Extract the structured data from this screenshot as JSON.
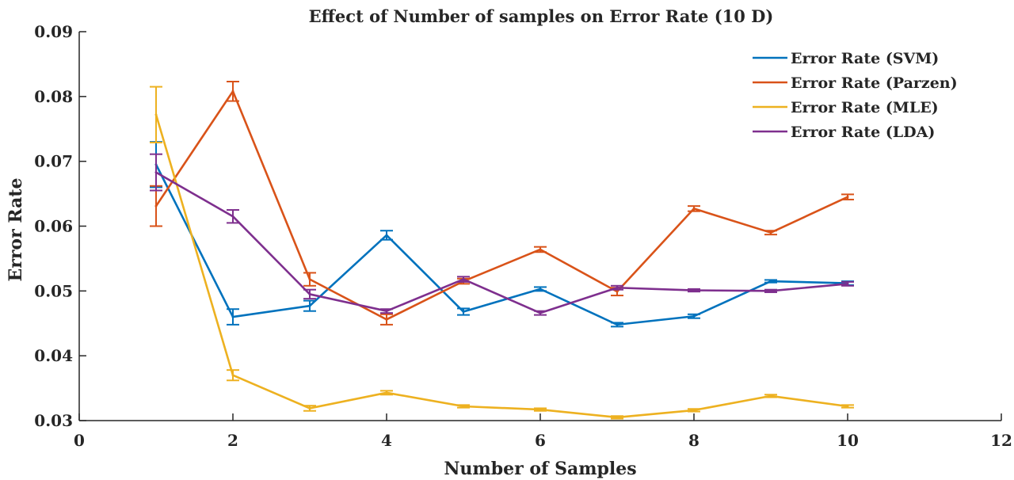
{
  "chart_data": {
    "type": "line",
    "title": "Effect of Number of samples on Error Rate (10 D)",
    "xlabel": "Number of Samples",
    "ylabel": "Error Rate",
    "xlim": [
      0,
      12
    ],
    "ylim": [
      0.03,
      0.09
    ],
    "xticks": [
      "0",
      "2",
      "4",
      "6",
      "8",
      "10",
      "12"
    ],
    "yticks": [
      "0.03",
      "0.04",
      "0.05",
      "0.06",
      "0.07",
      "0.08",
      "0.09"
    ],
    "grid": false,
    "legend_position": "top-right",
    "x": [
      1,
      2,
      3,
      4,
      5,
      6,
      7,
      8,
      9,
      10
    ],
    "series": [
      {
        "name": "Error Rate (SVM)",
        "color": "#0072BD",
        "values": [
          0.0695,
          0.046,
          0.0477,
          0.0586,
          0.0468,
          0.0503,
          0.0448,
          0.0461,
          0.0515,
          0.0512
        ],
        "errors": [
          0.0035,
          0.0012,
          0.0008,
          0.0007,
          0.0005,
          0.0003,
          0.0003,
          0.0003,
          0.0002,
          0.0003
        ]
      },
      {
        "name": "Error Rate (Parzen)",
        "color": "#D95319",
        "values": [
          0.0631,
          0.0808,
          0.0518,
          0.0456,
          0.0515,
          0.0564,
          0.0499,
          0.0627,
          0.059,
          0.0645
        ],
        "errors": [
          0.0031,
          0.0015,
          0.001,
          0.0008,
          0.0004,
          0.0004,
          0.0006,
          0.0004,
          0.0003,
          0.0004
        ]
      },
      {
        "name": "Error Rate (MLE)",
        "color": "#EDB120",
        "values": [
          0.0772,
          0.037,
          0.0319,
          0.0343,
          0.0322,
          0.0317,
          0.0305,
          0.0316,
          0.0338,
          0.0322
        ],
        "errors": [
          0.0043,
          0.0008,
          0.0004,
          0.0003,
          0.0002,
          0.0002,
          0.0002,
          0.0002,
          0.0002,
          0.0002
        ]
      },
      {
        "name": "Error Rate (LDA)",
        "color": "#7E2F8E",
        "values": [
          0.0683,
          0.0615,
          0.0495,
          0.0469,
          0.0518,
          0.0466,
          0.0505,
          0.0501,
          0.05,
          0.0511
        ],
        "errors": [
          0.0028,
          0.001,
          0.0007,
          0.0003,
          0.0004,
          0.0003,
          0.0003,
          0.0002,
          0.0002,
          0.0003
        ]
      }
    ]
  }
}
